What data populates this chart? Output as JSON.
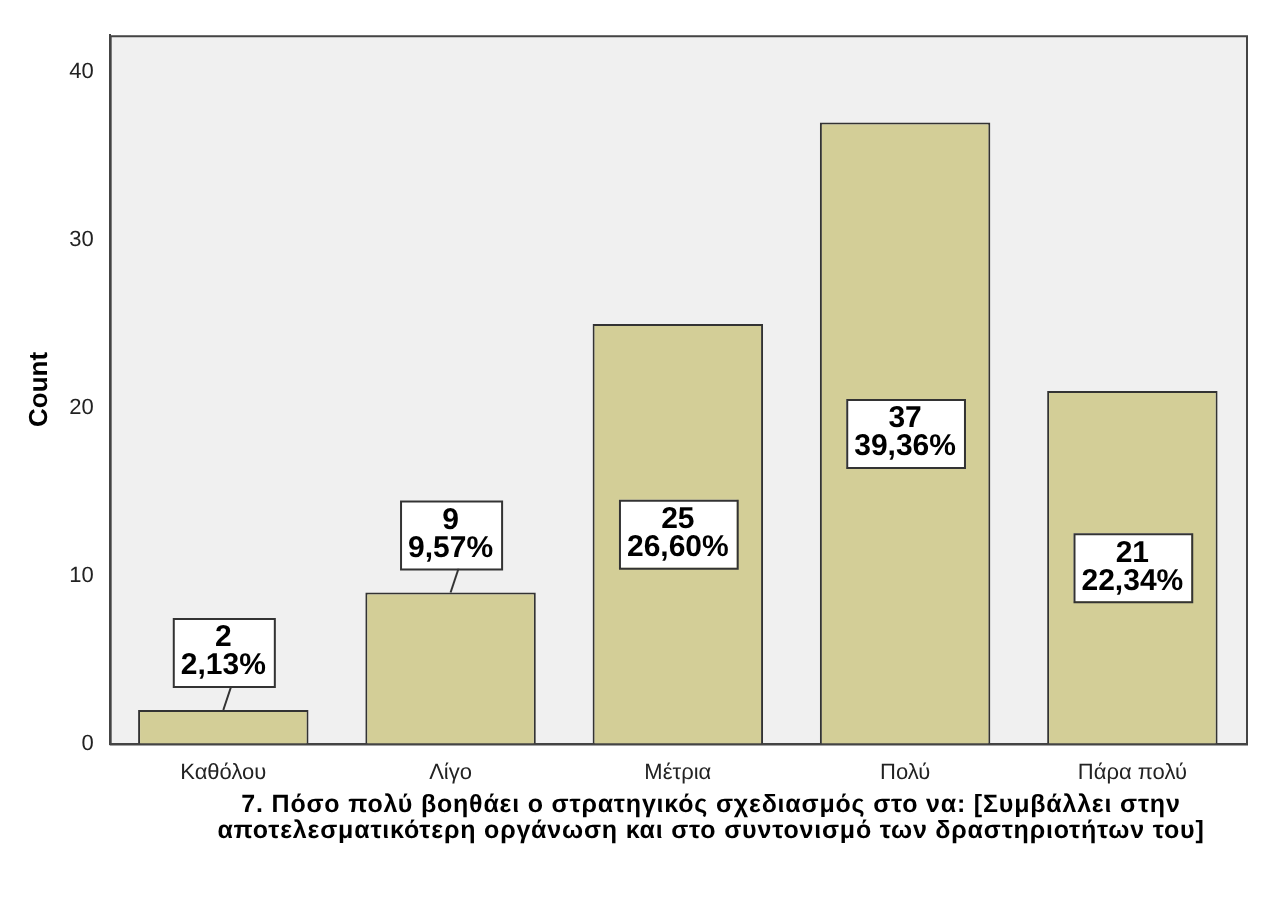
{
  "chart_data": {
    "type": "bar",
    "xlabel": "7. Πόσο πολύ βοηθάει ο  στρατηγικός σχεδιασμός στο να: [Συμβάλλει στην αποτελεσματικότερη οργάνωση και στο συντονισμό των δραστηριοτήτων του]",
    "ylabel": "Count",
    "categories": [
      "Καθόλου",
      "Λίγο",
      "Μέτρια",
      "Πολύ",
      "Πάρα πολύ"
    ],
    "values": [
      2,
      9,
      25,
      37,
      21
    ],
    "value_labels": [
      "2\n2,13%",
      "9\n9,57%",
      "25\n26,60%",
      "37\n39,36%",
      "21\n22,34%"
    ],
    "color": "#d3ce97",
    "ylim": [
      0,
      42.2
    ],
    "yticks": [
      0,
      10,
      20,
      30,
      40
    ],
    "grid": false,
    "legend": false
  }
}
